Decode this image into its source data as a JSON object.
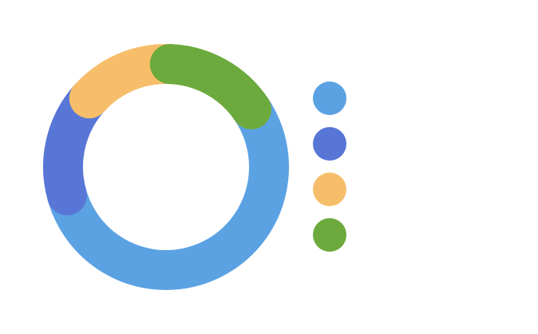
{
  "chart_data": {
    "type": "pie",
    "variant": "donut",
    "title": "",
    "labels": [
      "",
      "",
      "",
      ""
    ],
    "values": [
      55,
      16,
      14,
      15
    ],
    "unit": "percent",
    "start_angle_deg": 56,
    "direction": "clockwise",
    "colors": [
      "#5BA2E3",
      "#5776D6",
      "#F6BE6A",
      "#6DAA3D"
    ],
    "legend": "right",
    "grid": false
  }
}
